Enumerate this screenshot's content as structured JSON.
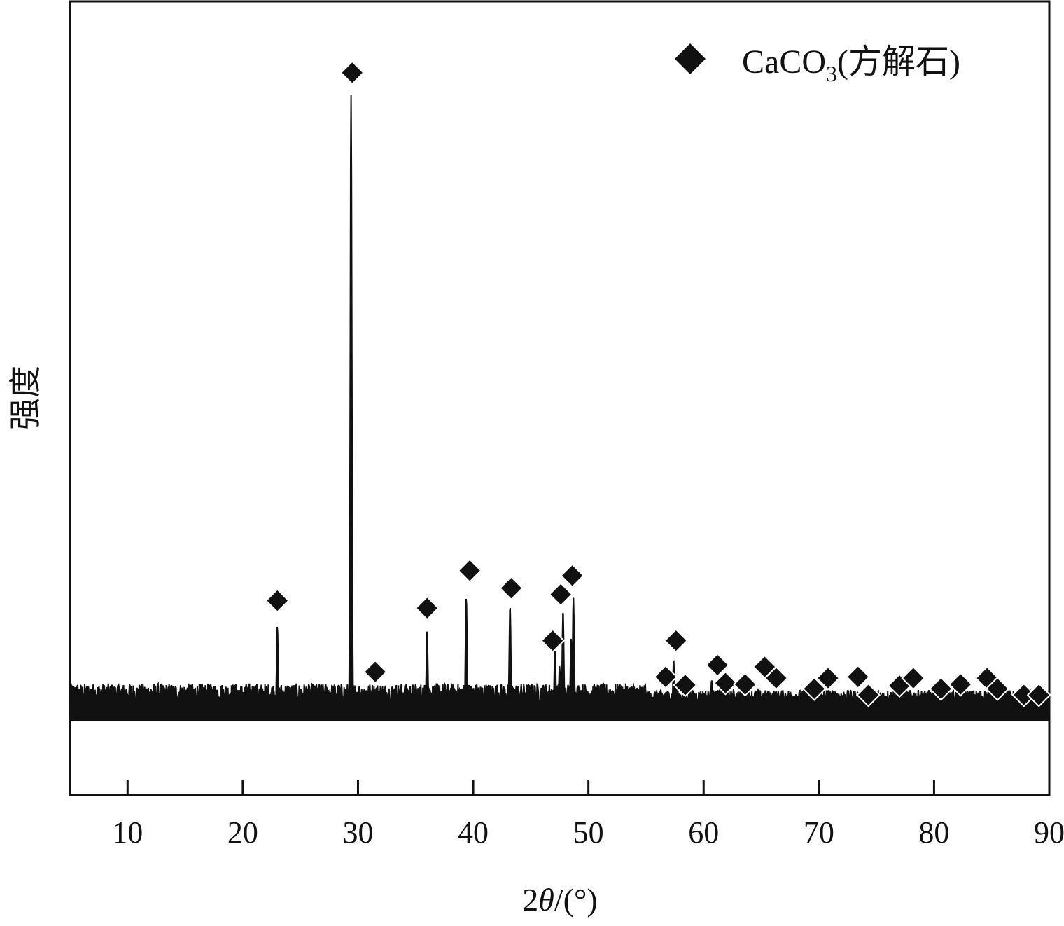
{
  "chart_data": {
    "type": "line",
    "title": "",
    "xlabel_prefix": "2",
    "xlabel_theta": "θ",
    "xlabel_suffix": "/(°)",
    "ylabel": "强度",
    "xlim": [
      5,
      90
    ],
    "ylim": [
      0,
      100
    ],
    "x_ticks": [
      10,
      20,
      30,
      40,
      50,
      60,
      70,
      80,
      90
    ],
    "grid": false,
    "legend": {
      "position": "top-right",
      "marker": "diamond",
      "label_main": "CaCO",
      "label_sub": "3",
      "label_tail": "(方解石)"
    },
    "baseline": 5,
    "noise_level": 3,
    "series": [
      {
        "peaks": [
          {
            "x": 23.0,
            "y": 14.9
          },
          {
            "x": 29.4,
            "y": 100.0
          },
          {
            "x": 31.4,
            "y": 4.0
          },
          {
            "x": 36.0,
            "y": 14.2
          },
          {
            "x": 39.4,
            "y": 19.5
          },
          {
            "x": 43.2,
            "y": 18.2
          },
          {
            "x": 47.1,
            "y": 11.0
          },
          {
            "x": 47.5,
            "y": 8.5
          },
          {
            "x": 47.8,
            "y": 17.5
          },
          {
            "x": 48.5,
            "y": 13.0
          },
          {
            "x": 48.7,
            "y": 19.5
          },
          {
            "x": 56.6,
            "y": 3.8
          },
          {
            "x": 57.4,
            "y": 9.5
          },
          {
            "x": 57.6,
            "y": 5.8
          },
          {
            "x": 58.1,
            "y": 3.0
          },
          {
            "x": 60.7,
            "y": 6.3
          },
          {
            "x": 61.4,
            "y": 4.8
          },
          {
            "x": 63.1,
            "y": 3.2
          },
          {
            "x": 64.7,
            "y": 5.0
          },
          {
            "x": 65.6,
            "y": 3.8
          },
          {
            "x": 69.2,
            "y": 2.8
          },
          {
            "x": 70.3,
            "y": 3.6
          },
          {
            "x": 72.9,
            "y": 3.6
          },
          {
            "x": 73.9,
            "y": 2.4
          },
          {
            "x": 76.3,
            "y": 3.0
          },
          {
            "x": 77.5,
            "y": 3.4
          },
          {
            "x": 80.9,
            "y": 2.4
          },
          {
            "x": 83.8,
            "y": 3.6
          },
          {
            "x": 84.8,
            "y": 2.4
          },
          {
            "x": 87.4,
            "y": 2.2
          },
          {
            "x": 88.9,
            "y": 2.0
          }
        ],
        "markers": [
          {
            "x": 23.0,
            "y": 19.0
          },
          {
            "x": 29.5,
            "y": 103.5
          },
          {
            "x": 31.5,
            "y": 7.6
          },
          {
            "x": 36.0,
            "y": 17.8
          },
          {
            "x": 39.7,
            "y": 23.8
          },
          {
            "x": 43.3,
            "y": 21.0
          },
          {
            "x": 46.9,
            "y": 12.6
          },
          {
            "x": 47.6,
            "y": 20.0
          },
          {
            "x": 48.6,
            "y": 23.0
          },
          {
            "x": 56.7,
            "y": 6.8
          },
          {
            "x": 57.6,
            "y": 12.6
          },
          {
            "x": 58.4,
            "y": 5.5
          },
          {
            "x": 61.2,
            "y": 8.7
          },
          {
            "x": 61.9,
            "y": 5.8
          },
          {
            "x": 63.6,
            "y": 5.6
          },
          {
            "x": 65.3,
            "y": 8.4
          },
          {
            "x": 66.3,
            "y": 6.6
          },
          {
            "x": 69.6,
            "y": 4.9
          },
          {
            "x": 70.8,
            "y": 6.6
          },
          {
            "x": 73.4,
            "y": 6.8
          },
          {
            "x": 74.3,
            "y": 3.9
          },
          {
            "x": 77.0,
            "y": 5.4
          },
          {
            "x": 78.2,
            "y": 6.6
          },
          {
            "x": 80.6,
            "y": 4.9
          },
          {
            "x": 82.3,
            "y": 5.6
          },
          {
            "x": 84.6,
            "y": 6.6
          },
          {
            "x": 85.5,
            "y": 4.9
          },
          {
            "x": 87.8,
            "y": 3.9
          },
          {
            "x": 89.1,
            "y": 3.9
          }
        ]
      }
    ]
  }
}
